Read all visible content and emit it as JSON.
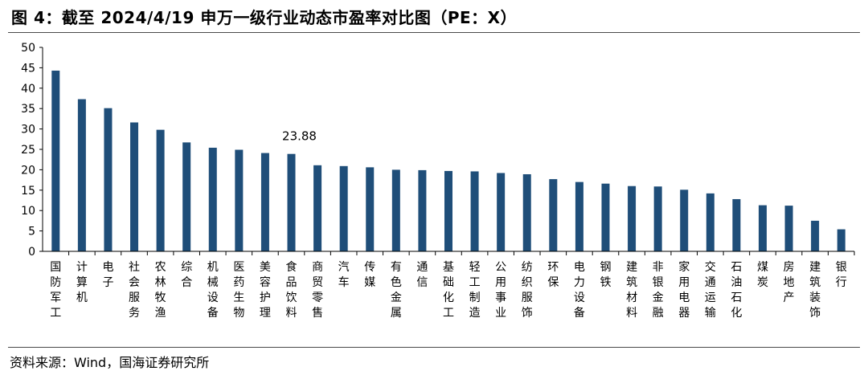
{
  "title": "图 4：截至 2024/4/19 申万一级行业动态市盈率对比图（PE：X）",
  "source": "资料来源：Wind，国海证券研究所",
  "colors": {
    "bar": "#1f4e79",
    "axis": "#000000"
  },
  "chart_data": {
    "type": "bar",
    "title": "图 4：截至 2024/4/19 申万一级行业动态市盈率对比图（PE：X）",
    "xlabel": "",
    "ylabel": "",
    "ylim": [
      0,
      50
    ],
    "yticks": [
      0,
      5,
      10,
      15,
      20,
      25,
      30,
      35,
      40,
      45,
      50
    ],
    "grid": false,
    "legend": "none",
    "categories": [
      "国防军工",
      "计算机",
      "电子",
      "社会服务",
      "农林牧渔",
      "综合",
      "机械设备",
      "医药生物",
      "美容护理",
      "食品饮料",
      "商贸零售",
      "汽车",
      "传媒",
      "有色金属",
      "通信",
      "基础化工",
      "轻工制造",
      "公用事业",
      "纺织服饰",
      "环保",
      "电力设备",
      "钢铁",
      "建筑材料",
      "非银金融",
      "家用电器",
      "交通运输",
      "石油石化",
      "煤炭",
      "房地产",
      "建筑装饰",
      "银行"
    ],
    "values": [
      44.3,
      37.3,
      35.1,
      31.6,
      29.8,
      26.7,
      25.4,
      24.9,
      24.1,
      23.88,
      21.1,
      20.9,
      20.6,
      20.0,
      19.9,
      19.7,
      19.6,
      19.2,
      18.9,
      17.7,
      17.0,
      16.6,
      16.0,
      15.9,
      15.1,
      14.2,
      12.8,
      11.3,
      11.2,
      7.5,
      5.4
    ],
    "annotations": [
      {
        "category": "食品饮料",
        "text": "23.88"
      }
    ]
  }
}
